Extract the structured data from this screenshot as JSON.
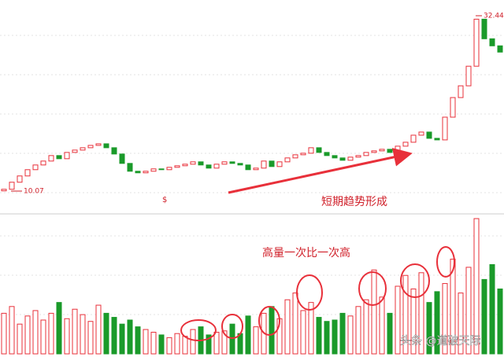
{
  "chart_data": {
    "type": "candlestick",
    "open": [
      10.1,
      10.3,
      11.2,
      12.0,
      12.8,
      13.4,
      13.9,
      14.6,
      14.2,
      15.0,
      15.3,
      15.6,
      15.9,
      16.1,
      15.6,
      14.8,
      13.6,
      12.6,
      12.4,
      12.6,
      12.9,
      12.8,
      13.1,
      13.3,
      13.5,
      13.8,
      13.4,
      13.0,
      13.5,
      13.8,
      13.6,
      13.4,
      12.8,
      13.0,
      13.9,
      13.2,
      13.8,
      14.3,
      14.7,
      14.9,
      15.6,
      15.0,
      14.6,
      14.3,
      14.0,
      14.4,
      14.6,
      15.0,
      15.2,
      15.4,
      15.0,
      15.8,
      16.3,
      17.2,
      17.6,
      16.8,
      16.6,
      19.5,
      22.0,
      23.5,
      26.0,
      32.0,
      29.5,
      28.6
    ],
    "close": [
      10.3,
      11.2,
      12.0,
      12.8,
      13.4,
      13.9,
      14.6,
      14.2,
      15.0,
      15.3,
      15.6,
      15.9,
      16.1,
      15.6,
      14.8,
      13.6,
      12.6,
      12.4,
      12.6,
      12.9,
      12.8,
      13.1,
      13.3,
      13.5,
      13.8,
      13.4,
      13.0,
      13.5,
      13.8,
      13.6,
      13.4,
      12.8,
      13.0,
      13.9,
      13.2,
      13.8,
      14.3,
      14.7,
      14.9,
      15.6,
      15.0,
      14.6,
      14.3,
      14.0,
      14.4,
      14.6,
      15.0,
      15.2,
      15.4,
      15.0,
      15.8,
      16.3,
      17.2,
      17.6,
      16.8,
      16.6,
      19.5,
      22.0,
      23.5,
      26.0,
      32.0,
      29.5,
      28.6,
      27.8
    ],
    "volume": [
      30,
      35,
      22,
      28,
      32,
      25,
      30,
      38,
      26,
      33,
      29,
      24,
      36,
      30,
      27,
      22,
      25,
      20,
      18,
      16,
      14,
      12,
      15,
      13,
      18,
      20,
      14,
      16,
      17,
      22,
      15,
      28,
      20,
      30,
      35,
      26,
      40,
      45,
      32,
      38,
      27,
      24,
      25,
      30,
      28,
      35,
      40,
      62,
      42,
      30,
      50,
      58,
      48,
      60,
      38,
      46,
      52,
      70,
      45,
      64,
      100,
      55,
      66,
      48
    ],
    "up_color": "#e8303a",
    "down_color": "#1a9a2a",
    "low_label": 10.07,
    "high_label": 32.44,
    "annotations": [
      "短期趋势形成",
      "高量一次比一次高"
    ],
    "marker": "$",
    "watermark": "头条 @道破天际"
  }
}
